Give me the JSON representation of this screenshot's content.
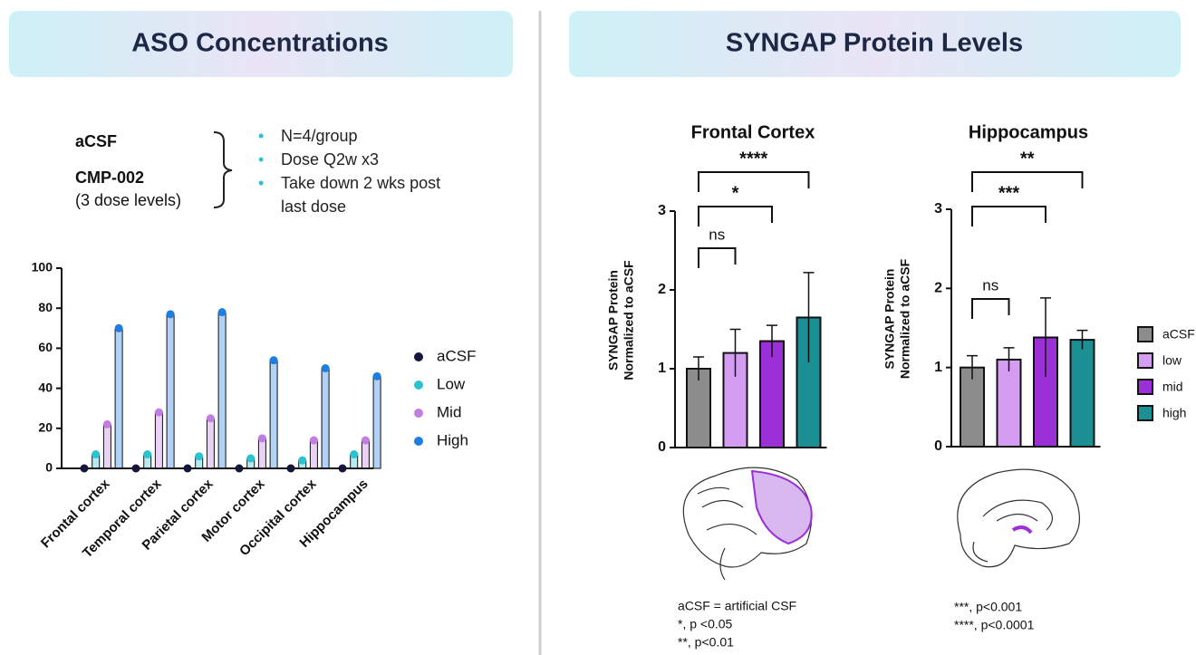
{
  "left_panel": {
    "title": "ASO Concentrations",
    "groups": [
      "aCSF",
      "CMP-002"
    ],
    "group_note": "(3 dose levels)",
    "bullets": [
      "N=4/group",
      "Dose Q2w x3",
      "Take down 2 wks post last dose"
    ]
  },
  "right_panel": {
    "title": "SYNGAP Protein Levels",
    "footnotes": [
      [
        "aCSF = artificial CSF",
        "*, p <0.05",
        "**, p<0.01"
      ],
      [
        "***, p<0.001",
        "****, p<0.0001"
      ]
    ]
  },
  "chart_data": [
    {
      "type": "grouped_bar",
      "categories": [
        "Frontal cortex",
        "Temporal cortex",
        "Parietal cortex",
        "Motor cortex",
        "Occipital cortex",
        "Hippocampus"
      ],
      "series": [
        {
          "name": "aCSF",
          "color": "#15163a",
          "values": [
            0,
            0,
            0,
            0,
            0,
            0
          ]
        },
        {
          "name": "Low",
          "color": "#2cc3d1",
          "values": [
            7,
            7,
            6,
            5,
            4,
            7
          ]
        },
        {
          "name": "Mid",
          "color": "#c27de0",
          "values": [
            22,
            28,
            25,
            15,
            14,
            14
          ]
        },
        {
          "name": "High",
          "color": "#1f7fe0",
          "values": [
            70,
            77,
            78,
            54,
            50,
            46
          ]
        }
      ],
      "ylim": [
        0,
        100
      ],
      "yticks": [
        0,
        20,
        40,
        60,
        80,
        100
      ],
      "legend": "right"
    },
    {
      "type": "bar",
      "title": "Frontal Cortex",
      "ylabel": [
        "SYNGAP Protein",
        "Normalized to aCSF"
      ],
      "categories": [
        null,
        null,
        null,
        null
      ],
      "values": [
        1.0,
        1.2,
        1.35,
        1.65
      ],
      "errors": [
        0.15,
        0.3,
        0.2,
        0.57
      ],
      "colors": [
        "#8c8c8c",
        "#d59df2",
        "#9b30d9",
        "#1a8f94"
      ],
      "ylim": [
        0,
        3
      ],
      "yticks": [
        0,
        1,
        2,
        3
      ],
      "annotations": [
        {
          "label": "ns",
          "from": 0,
          "to": 1
        },
        {
          "label": "*",
          "from": 0,
          "to": 2
        },
        {
          "label": "****",
          "from": 0,
          "to": 3
        }
      ]
    },
    {
      "type": "bar",
      "title": "Hippocampus",
      "ylabel": [
        "SYNGAP Protein",
        "Normalized to aCSF"
      ],
      "categories": [
        null,
        null,
        null,
        null
      ],
      "values": [
        1.0,
        1.1,
        1.38,
        1.35
      ],
      "errors": [
        0.15,
        0.15,
        0.5,
        0.12
      ],
      "colors": [
        "#8c8c8c",
        "#d59df2",
        "#9b30d9",
        "#1a8f94"
      ],
      "ylim": [
        0,
        3
      ],
      "yticks": [
        0,
        1,
        2,
        3
      ],
      "annotations": [
        {
          "label": "ns",
          "from": 0,
          "to": 1
        },
        {
          "label": "***",
          "from": 0,
          "to": 2
        },
        {
          "label": "**",
          "from": 0,
          "to": 3
        }
      ],
      "legend": {
        "labels": [
          "aCSF",
          "low",
          "mid",
          "high"
        ]
      }
    }
  ]
}
